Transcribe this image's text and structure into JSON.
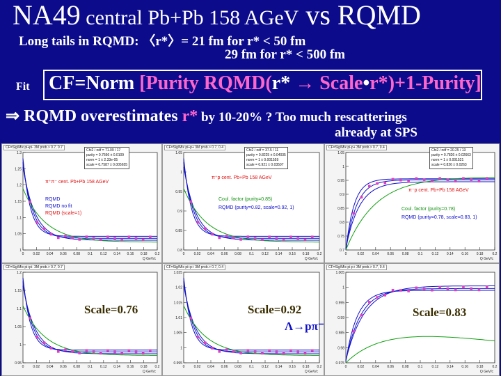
{
  "title": {
    "part1": "NA49",
    "part2": " central Pb+Pb 158 AGeV",
    "part3": " vs RQMD"
  },
  "tails": {
    "line1": "Long  tails in RQMD:  〈r*〉= 21 fm  for r* < 50 fm",
    "line2": "29 fm  for r* < 500 fm"
  },
  "fit": {
    "label": "Fit",
    "formula_a": "CF=Norm ",
    "formula_b": "[Purity RQMD(",
    "formula_c": "r* ",
    "formula_d": "→ Scale",
    "formula_e": "•",
    "formula_f": "r*",
    "formula_g": ")+1-Purity]"
  },
  "conclusion": {
    "arrow": "⇒ RQMD overestimates ",
    "rstar": "r*",
    "rest": " by 10-20%  ? Too much rescatterings",
    "line2": "already at SPS"
  },
  "colors": {
    "background": "#0b0b8c",
    "pink": "#ff66cc",
    "red": "#e01010",
    "blue": "#1010cc",
    "green": "#10a010"
  },
  "panels": [
    {
      "title": "CF=Sig/Mix  pi+pi- 3M prob.> 0.7, 0.7",
      "stats": [
        "Chi2 / ndf = 71.09 / 17",
        "purity   = 0.7666 ± 0.0109",
        "norm      = 1 ± 2.33e-05",
        "scale    = 0.7587 ± 0.005655"
      ],
      "labels": [
        "π⁺π⁻  cent. Pb+Pb  158 AGeV",
        "RQMD",
        "RQMD no fit",
        "RQMD (scale=1)"
      ],
      "yticks": [
        "1.3",
        "1.25",
        "1.2",
        "1.15",
        "1.1",
        "1.05",
        "1"
      ],
      "xticks": [
        "0",
        "0.02",
        "0.04",
        "0.06",
        "0.08",
        "0.1",
        "0.12",
        "0.14",
        "0.16",
        "0.18",
        "0.2"
      ],
      "xunit": "Q GeV/c"
    },
    {
      "title": "CF=Sig/Mix  pi+p+ 3M prob.> 0.7, 0.4",
      "stats": [
        "Chi2 / ndf = 37.5 / 11",
        "purity   = 0.8225 ± 0.04035",
        "norm      = 1 ± 0.001559",
        "scale    = 0.921 ± 0.03507"
      ],
      "labels": [
        "π⁺p  cent. Pb+Pb  158 AGeV",
        "Coul. factor (purity=0.85)",
        "RQMD (purity=0.82, scale=0.92, 1)"
      ],
      "yticks": [
        "1.05",
        "1",
        "0.95",
        "0.9",
        "0.85",
        "0.8"
      ],
      "xticks": [
        "0",
        "0.02",
        "0.04",
        "0.06",
        "0.08",
        "0.1",
        "0.12",
        "0.14",
        "0.16",
        "0.18",
        "0.2"
      ],
      "xunit": "Q GeV/c"
    },
    {
      "title": "CF=Sig/Mix  pi-p+ 3M prob.> 0.7, 0.4",
      "stats": [
        "Chi2 / ndf = 20.25 / 13",
        "purity   = 0.7826 ± 0.02663",
        "norm      = 1 ± 0.001521",
        "scale    = 0.826 ± 0.0263"
      ],
      "labels": [
        "π⁻p  cent. Pb+Pb  158 AGeV",
        "Coul. factor (purity=0.78)",
        "RQMD (purity=0.78, scale=0.83, 1)"
      ],
      "yticks": [
        "1.05",
        "1",
        "0.95",
        "0.9",
        "0.85",
        "0.8",
        "0.75",
        "0.7"
      ],
      "xticks": [
        "0",
        "0.02",
        "0.04",
        "0.06",
        "0.08",
        "0.1",
        "0.12",
        "0.14",
        "0.16",
        "0.18",
        "0.2"
      ],
      "xunit": "Q GeV/c"
    },
    {
      "title": "CF=Sig/Mix  pi+pi- 3M prob.> 0.7, 0.7",
      "scale": "Scale=0.76",
      "yticks": [
        "1.2",
        "1.15",
        "1.1",
        "1.05",
        "1",
        "0.95"
      ],
      "xticks": [
        "0",
        "0.02",
        "0.04",
        "0.06",
        "0.08",
        "0.1",
        "0.12",
        "0.14",
        "0.16",
        "0.18",
        "0.2"
      ],
      "xunit": "Q GeV/c"
    },
    {
      "title": "CF=Sig/Mix  pi+p+ 3M prob.> 0.7, 0.4",
      "scale": "Scale=0.92",
      "decay": "Λ→pπ⁻",
      "yticks": [
        "1.025",
        "1.02",
        "1.015",
        "1.01",
        "1.005",
        "1",
        "0.995"
      ],
      "xticks": [
        "0",
        "0.02",
        "0.04",
        "0.06",
        "0.08",
        "0.1",
        "0.12",
        "0.14",
        "0.16",
        "0.18",
        "0.2"
      ],
      "xunit": "Q GeV/c"
    },
    {
      "title": "CF=Sig/Mix  pi-p+ 3M prob.> 0.7, 0.4",
      "scale": "Scale=0.83",
      "yticks": [
        "1.005",
        "1",
        "0.995",
        "0.99",
        "0.985",
        "0.98",
        "0.975"
      ],
      "xticks": [
        "0",
        "0.02",
        "0.04",
        "0.06",
        "0.08",
        "0.1",
        "0.12",
        "0.14",
        "0.16",
        "0.18",
        "0.2"
      ],
      "xunit": "Q GeV/c"
    }
  ]
}
